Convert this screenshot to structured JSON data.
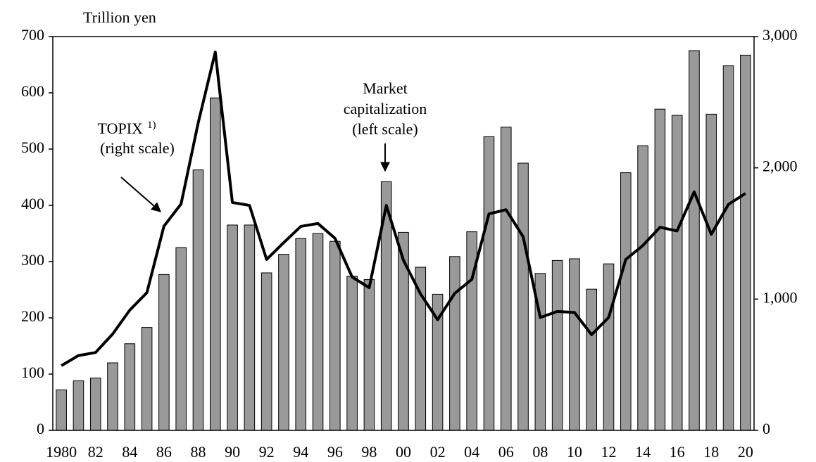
{
  "chart_data": {
    "type": "bar_line",
    "y_label": "Trillion yen",
    "categories": [
      "1980",
      null,
      "82",
      null,
      "84",
      null,
      "86",
      null,
      "88",
      null,
      "90",
      null,
      "92",
      null,
      "94",
      null,
      "96",
      null,
      "98",
      null,
      "00",
      null,
      "02",
      null,
      "04",
      null,
      "06",
      null,
      "08",
      null,
      "10",
      null,
      "12",
      null,
      "14",
      null,
      "16",
      null,
      "18",
      null,
      "20"
    ],
    "series": [
      {
        "name": "Market capitalization",
        "type": "bar",
        "axis": "y",
        "color": "#999999",
        "values": [
          72,
          88,
          93,
          120,
          154,
          183,
          277,
          325,
          463,
          591,
          365,
          365,
          280,
          313,
          341,
          350,
          336,
          274,
          268,
          442,
          352,
          290,
          242,
          309,
          353,
          522,
          539,
          475,
          279,
          302,
          305,
          251,
          296,
          458,
          506,
          571,
          560,
          675,
          562,
          648,
          667
        ]
      },
      {
        "name": "TOPIX",
        "type": "line",
        "axis": "y2",
        "color": "#000000",
        "values": [
          493,
          570,
          593,
          734,
          916,
          1049,
          1556,
          1725,
          2342,
          2882,
          1736,
          1714,
          1302,
          1430,
          1554,
          1576,
          1463,
          1168,
          1087,
          1714,
          1296,
          1039,
          843,
          1044,
          1150,
          1649,
          1681,
          1475,
          860,
          906,
          898,
          729,
          860,
          1302,
          1408,
          1547,
          1519,
          1817,
          1494,
          1721,
          1805
        ]
      }
    ],
    "ylim": [
      0,
      700
    ],
    "yticks": [
      0,
      100,
      200,
      300,
      400,
      500,
      600,
      700
    ],
    "y2lim": [
      0,
      3000
    ],
    "y2ticks": [
      0,
      {
        "value": 1000,
        "label": "1,000"
      },
      {
        "value": 2000,
        "label": "2,000"
      },
      {
        "value": 3000,
        "label": "3,000"
      }
    ],
    "annotations": {
      "topix": [
        "TOPIX",
        "1)",
        "(right scale)"
      ],
      "market": [
        "Market",
        "capitalization",
        "(left scale)"
      ]
    }
  }
}
